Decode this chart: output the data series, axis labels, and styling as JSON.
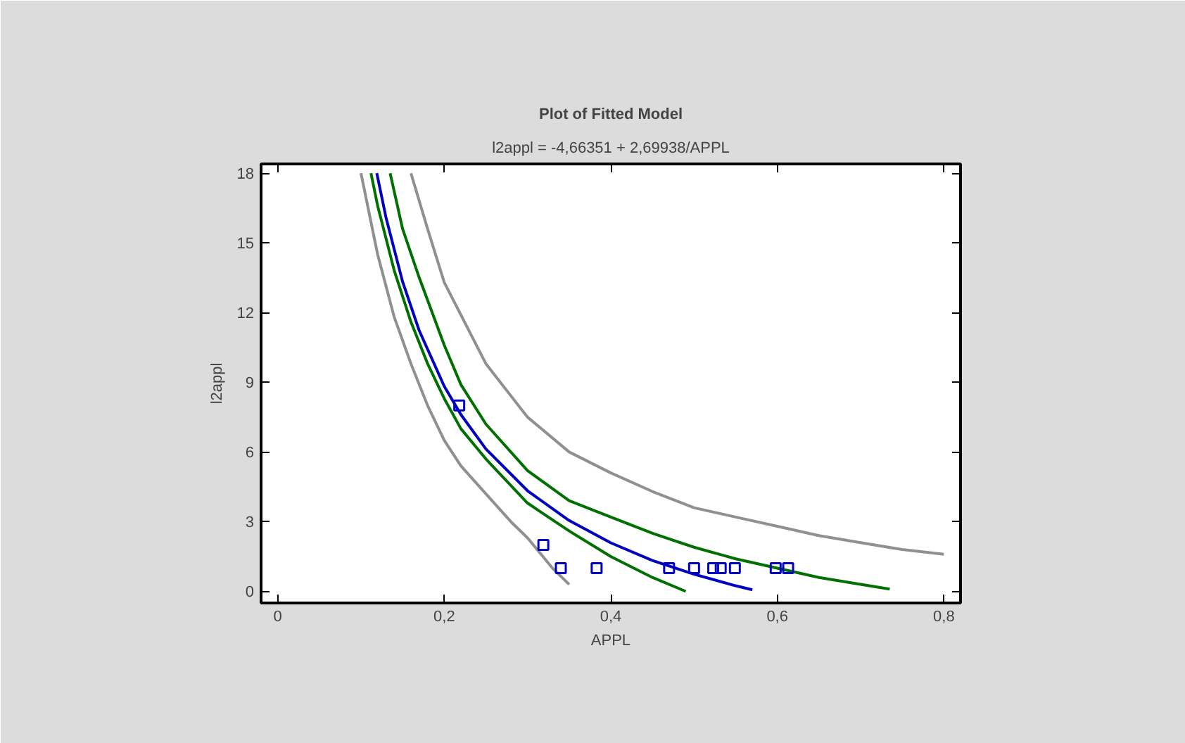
{
  "chart_data": {
    "type": "line",
    "title": "Plot of Fitted Model",
    "subtitle": "l2appl = -4,66351 + 2,69938/APPL",
    "xlabel": "APPL",
    "ylabel": "l2appl",
    "xlim": [
      -0.02,
      0.82
    ],
    "ylim": [
      -0.5,
      18.4
    ],
    "xticks": [
      0,
      {
        "value": 0.2,
        "label": "0,2"
      },
      {
        "value": 0.4,
        "label": "0,4"
      },
      {
        "value": 0.6,
        "label": "0,6"
      },
      {
        "value": 0.8,
        "label": "0,8"
      }
    ],
    "yticks": [
      0,
      3,
      6,
      9,
      12,
      15,
      18
    ],
    "grid": false,
    "series": [
      {
        "color": "#909090",
        "marker": "none",
        "x": [
          0.16,
          0.18,
          0.2,
          0.25,
          0.3,
          0.35,
          0.4,
          0.45,
          0.5,
          0.55,
          0.6,
          0.65,
          0.7,
          0.75,
          0.8
        ],
        "values": [
          18.0,
          15.6,
          13.3,
          9.8,
          7.5,
          6.0,
          5.1,
          4.3,
          3.6,
          3.2,
          2.8,
          2.4,
          2.1,
          1.8,
          1.6
        ]
      },
      {
        "color": "#909090",
        "marker": "none",
        "x": [
          0.1,
          0.12,
          0.14,
          0.16,
          0.18,
          0.2,
          0.22,
          0.25,
          0.28,
          0.3,
          0.33,
          0.35
        ],
        "values": [
          18.0,
          14.5,
          11.8,
          9.8,
          8.0,
          6.5,
          5.4,
          4.2,
          3.0,
          2.3,
          1.0,
          0.3
        ]
      },
      {
        "color": "#007000",
        "marker": "none",
        "x": [
          0.135,
          0.15,
          0.17,
          0.2,
          0.22,
          0.25,
          0.3,
          0.35,
          0.4,
          0.45,
          0.5,
          0.55,
          0.6,
          0.65,
          0.7,
          0.735
        ],
        "values": [
          18.0,
          15.6,
          13.5,
          10.6,
          8.9,
          7.2,
          5.2,
          3.9,
          3.2,
          2.5,
          1.9,
          1.4,
          1.0,
          0.6,
          0.3,
          0.1
        ]
      },
      {
        "color": "#007000",
        "marker": "none",
        "x": [
          0.112,
          0.12,
          0.14,
          0.16,
          0.18,
          0.2,
          0.22,
          0.25,
          0.3,
          0.35,
          0.4,
          0.45,
          0.49
        ],
        "values": [
          18.0,
          16.6,
          13.8,
          11.6,
          9.8,
          8.3,
          7.0,
          5.7,
          3.8,
          2.6,
          1.5,
          0.6,
          0.0
        ]
      },
      {
        "color": "#0000c0",
        "marker": "none",
        "x": [
          0.119,
          0.13,
          0.15,
          0.17,
          0.2,
          0.22,
          0.25,
          0.3,
          0.35,
          0.4,
          0.45,
          0.5,
          0.55,
          0.57
        ],
        "values": [
          18.0,
          16.1,
          13.33,
          11.22,
          8.83,
          7.61,
          6.13,
          4.33,
          3.05,
          2.09,
          1.33,
          0.74,
          0.24,
          0.07
        ]
      },
      {
        "type": "scatter",
        "color": "#0000c0",
        "marker": "square",
        "x": [
          0.218,
          0.319,
          0.34,
          0.383,
          0.47,
          0.5,
          0.523,
          0.532,
          0.549,
          0.598,
          0.613
        ],
        "values": [
          8,
          2,
          1,
          1,
          1,
          1,
          1,
          1,
          1,
          1,
          1
        ]
      }
    ]
  }
}
